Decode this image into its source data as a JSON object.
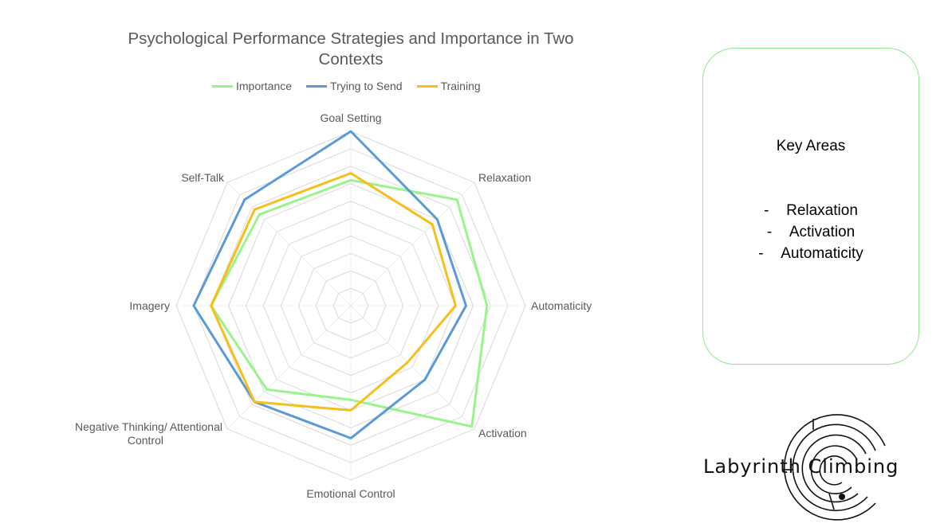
{
  "chart_data": {
    "type": "radar",
    "title": "Psychological Performance Strategies and Importance in Two Contexts",
    "axes": [
      "Goal Setting",
      "Relaxation",
      "Automaticity",
      "Activation",
      "Emotional Control",
      "Negative Thinking/ Attentional Control",
      "Imagery",
      "Self-Talk"
    ],
    "axis_labels": {
      "goal_setting": "Goal Setting",
      "relaxation": "Relaxation",
      "automaticity": "Automaticity",
      "activation": "Activation",
      "emotional_control": "Emotional Control",
      "negative_thinking_line1": "Negative Thinking/ Attentional",
      "negative_thinking_line2": "Control",
      "imagery": "Imagery",
      "self_talk": "Self-Talk"
    },
    "rlim": [
      0,
      5
    ],
    "gridlines": [
      0.5,
      1,
      1.5,
      2,
      2.5,
      3,
      3.5,
      4,
      4.5,
      5
    ],
    "grid": true,
    "legend_position": "top",
    "series": [
      {
        "name": "Importance",
        "color": "#97f58a",
        "values": [
          3.6,
          4.3,
          3.9,
          4.9,
          2.7,
          3.4,
          4.0,
          3.7
        ]
      },
      {
        "name": "Trying to Send",
        "color": "#5b9bd5",
        "values": [
          5.0,
          3.5,
          3.3,
          3.0,
          3.8,
          3.9,
          4.5,
          4.3
        ]
      },
      {
        "name": "Training",
        "color": "#f7bf1a",
        "values": [
          3.8,
          3.3,
          3.0,
          2.3,
          3.0,
          3.9,
          4.0,
          3.9
        ]
      }
    ]
  },
  "key_box": {
    "title": "Key Areas",
    "items": [
      {
        "dash": "-",
        "label": "Relaxation"
      },
      {
        "dash": "-",
        "label": "Activation"
      },
      {
        "dash": "-",
        "label": "Automaticity"
      }
    ],
    "border_color": "#8ee88e"
  },
  "logo": {
    "text": "Labyrinth Climbing",
    "icon": "labyrinth-maze-icon"
  }
}
